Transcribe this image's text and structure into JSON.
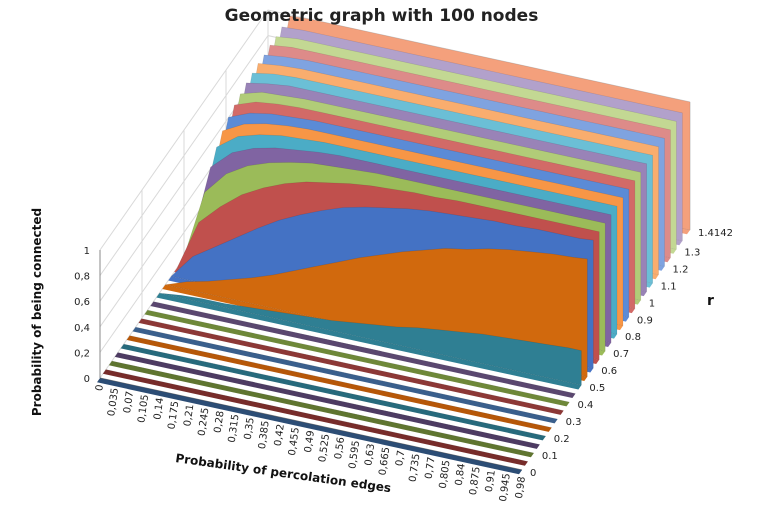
{
  "chart_data": {
    "type": "area",
    "title": "Geometric graph with 100 nodes",
    "xlabel": "Probability of percolation edges",
    "ylabel": "Probability of being connected",
    "zlabel": "r",
    "x_ticks": [
      "0",
      "0,035",
      "0,07",
      "0,105",
      "0,14",
      "0,175",
      "0,21",
      "0,245",
      "0,28",
      "0,315",
      "0,35",
      "0,385",
      "0,42",
      "0,455",
      "0,49",
      "0,525",
      "0,56",
      "0,595",
      "0,63",
      "0,665",
      "0,7",
      "0,735",
      "0,77",
      "0,805",
      "0,84",
      "0,875",
      "0,91",
      "0,945",
      "0,98"
    ],
    "x_range": [
      0,
      0.98
    ],
    "y_ticks": [
      "0",
      "0,2",
      "0,4",
      "0,6",
      "0,8",
      "1"
    ],
    "ylim": [
      0,
      1
    ],
    "z_ticks": [
      "0",
      "0.1",
      "0.2",
      "0.3",
      "0.4",
      "0.5",
      "0.6",
      "0.7",
      "0.8",
      "0.9",
      "1",
      "1.1",
      "1.2",
      "1.3",
      "1.4142"
    ],
    "series_r": [
      0,
      0.05,
      0.1,
      0.15,
      0.2,
      0.25,
      0.3,
      0.35,
      0.4,
      0.45,
      0.5,
      0.55,
      0.6,
      0.65,
      0.7,
      0.75,
      0.8,
      0.85,
      0.9,
      0.95,
      1,
      1.05,
      1.1,
      1.15,
      1.2,
      1.25,
      1.3,
      1.35,
      1.4142
    ],
    "series_colors": [
      "#2C4D75",
      "#772C2A",
      "#5F7530",
      "#4D3B62",
      "#276A7C",
      "#B65708",
      "#3A5F8C",
      "#8C3836",
      "#6E8839",
      "#5A476F",
      "#2F7F93",
      "#D1690D",
      "#4472C4",
      "#C0504D",
      "#9BBB59",
      "#8064A2",
      "#4BACC6",
      "#F79646",
      "#5B8BD6",
      "#D26A67",
      "#B1CC78",
      "#9983B7",
      "#6BBFD6",
      "#F9AD6E",
      "#7FA3E0",
      "#DD8B89",
      "#C3D893",
      "#B2A1CB",
      "#F4A07C"
    ],
    "curve_points_p": [
      0,
      0.05,
      0.1,
      0.15,
      0.2,
      0.25,
      0.3,
      0.35,
      0.4,
      0.45,
      0.5,
      0.55,
      0.6,
      0.65,
      0.7,
      0.75,
      0.8,
      0.85,
      0.9,
      0.95,
      0.98
    ],
    "curves": [
      [
        0,
        0,
        0,
        0,
        0,
        0,
        0,
        0,
        0,
        0,
        0,
        0,
        0,
        0,
        0,
        0,
        0,
        0,
        0,
        0,
        0
      ],
      [
        0,
        0,
        0,
        0,
        0,
        0,
        0,
        0,
        0,
        0,
        0,
        0,
        0,
        0,
        0,
        0,
        0,
        0,
        0,
        0,
        0
      ],
      [
        0,
        0,
        0,
        0,
        0,
        0,
        0,
        0,
        0,
        0,
        0,
        0,
        0,
        0,
        0,
        0,
        0,
        0,
        0,
        0,
        0
      ],
      [
        0,
        0,
        0,
        0,
        0,
        0,
        0,
        0,
        0,
        0,
        0,
        0,
        0,
        0,
        0,
        0,
        0,
        0,
        0,
        0,
        0
      ],
      [
        0,
        0,
        0,
        0,
        0,
        0,
        0,
        0,
        0,
        0,
        0,
        0,
        0,
        0,
        0,
        0,
        0,
        0,
        0,
        0,
        0
      ],
      [
        0,
        0,
        0,
        0,
        0,
        0,
        0,
        0,
        0,
        0,
        0,
        0,
        0,
        0,
        0,
        0,
        0,
        0,
        0,
        0,
        0
      ],
      [
        0,
        0,
        0,
        0,
        0,
        0,
        0,
        0,
        0,
        0,
        0,
        0,
        0,
        0,
        0,
        0,
        0,
        0,
        0,
        0,
        0
      ],
      [
        0,
        0,
        0,
        0,
        0,
        0,
        0,
        0,
        0,
        0,
        0,
        0,
        0,
        0,
        0,
        0,
        0,
        0,
        0,
        0,
        0
      ],
      [
        0,
        0,
        0,
        0,
        0,
        0,
        0,
        0,
        0,
        0,
        0,
        0,
        0,
        0,
        0,
        0,
        0,
        0,
        0,
        0,
        0
      ],
      [
        0,
        0,
        0,
        0,
        0,
        0,
        0,
        0,
        0,
        0,
        0,
        0,
        0,
        0,
        0,
        0,
        0,
        0,
        0,
        0,
        0
      ],
      [
        0,
        0.02,
        0.03,
        0.03,
        0.04,
        0.05,
        0.06,
        0.07,
        0.08,
        0.1,
        0.12,
        0.14,
        0.17,
        0.19,
        0.21,
        0.23,
        0.24,
        0.25,
        0.26,
        0.27,
        0.27
      ],
      [
        0,
        0.06,
        0.1,
        0.15,
        0.2,
        0.26,
        0.33,
        0.4,
        0.47,
        0.54,
        0.6,
        0.66,
        0.71,
        0.76,
        0.79,
        0.83,
        0.86,
        0.88,
        0.9,
        0.91,
        0.92
      ],
      [
        0,
        0.19,
        0.3,
        0.41,
        0.52,
        0.62,
        0.7,
        0.77,
        0.83,
        0.87,
        0.9,
        0.93,
        0.95,
        0.96,
        0.97,
        0.98,
        0.98,
        0.99,
        0.99,
        0.99,
        1
      ],
      [
        0,
        0.39,
        0.55,
        0.68,
        0.77,
        0.84,
        0.89,
        0.92,
        0.95,
        0.97,
        0.98,
        0.99,
        0.99,
        1,
        1,
        1,
        1,
        1,
        1,
        1,
        1
      ],
      [
        0,
        0.56,
        0.74,
        0.84,
        0.9,
        0.94,
        0.97,
        0.98,
        0.99,
        1,
        1,
        1,
        1,
        1,
        1,
        1,
        1,
        1,
        1,
        1,
        1
      ],
      [
        0,
        0.69,
        0.84,
        0.91,
        0.95,
        0.97,
        0.99,
        1,
        1,
        1,
        1,
        1,
        1,
        1,
        1,
        1,
        1,
        1,
        1,
        1,
        1
      ],
      [
        0,
        0.78,
        0.9,
        0.95,
        0.98,
        0.99,
        1,
        1,
        1,
        1,
        1,
        1,
        1,
        1,
        1,
        1,
        1,
        1,
        1,
        1,
        1
      ],
      [
        0,
        0.84,
        0.93,
        0.97,
        0.99,
        1,
        1,
        1,
        1,
        1,
        1,
        1,
        1,
        1,
        1,
        1,
        1,
        1,
        1,
        1,
        1
      ],
      [
        0,
        0.88,
        0.95,
        0.98,
        0.99,
        1,
        1,
        1,
        1,
        1,
        1,
        1,
        1,
        1,
        1,
        1,
        1,
        1,
        1,
        1,
        1
      ],
      [
        0,
        0.91,
        0.97,
        0.99,
        1,
        1,
        1,
        1,
        1,
        1,
        1,
        1,
        1,
        1,
        1,
        1,
        1,
        1,
        1,
        1,
        1
      ],
      [
        0,
        0.93,
        0.98,
        0.99,
        1,
        1,
        1,
        1,
        1,
        1,
        1,
        1,
        1,
        1,
        1,
        1,
        1,
        1,
        1,
        1,
        1
      ],
      [
        0,
        0.95,
        0.98,
        1,
        1,
        1,
        1,
        1,
        1,
        1,
        1,
        1,
        1,
        1,
        1,
        1,
        1,
        1,
        1,
        1,
        1
      ],
      [
        0,
        0.96,
        0.99,
        1,
        1,
        1,
        1,
        1,
        1,
        1,
        1,
        1,
        1,
        1,
        1,
        1,
        1,
        1,
        1,
        1,
        1
      ],
      [
        0,
        0.97,
        0.99,
        1,
        1,
        1,
        1,
        1,
        1,
        1,
        1,
        1,
        1,
        1,
        1,
        1,
        1,
        1,
        1,
        1,
        1
      ],
      [
        0,
        0.97,
        0.99,
        1,
        1,
        1,
        1,
        1,
        1,
        1,
        1,
        1,
        1,
        1,
        1,
        1,
        1,
        1,
        1,
        1,
        1
      ],
      [
        0,
        0.98,
        1,
        1,
        1,
        1,
        1,
        1,
        1,
        1,
        1,
        1,
        1,
        1,
        1,
        1,
        1,
        1,
        1,
        1,
        1
      ],
      [
        0,
        0.98,
        1,
        1,
        1,
        1,
        1,
        1,
        1,
        1,
        1,
        1,
        1,
        1,
        1,
        1,
        1,
        1,
        1,
        1,
        1
      ],
      [
        0,
        0.99,
        1,
        1,
        1,
        1,
        1,
        1,
        1,
        1,
        1,
        1,
        1,
        1,
        1,
        1,
        1,
        1,
        1,
        1,
        1
      ],
      [
        0,
        0.99,
        1,
        1,
        1,
        1,
        1,
        1,
        1,
        1,
        1,
        1,
        1,
        1,
        1,
        1,
        1,
        1,
        1,
        1,
        1
      ]
    ],
    "grid": true,
    "legend": "none"
  }
}
